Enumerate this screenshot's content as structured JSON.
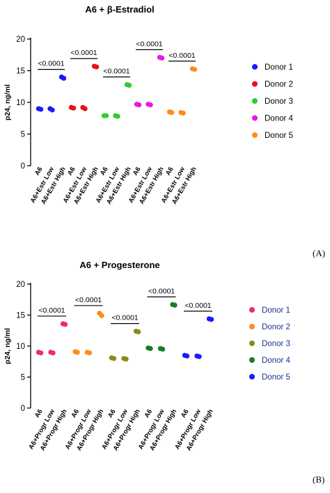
{
  "chart_data": [
    {
      "type": "scatter",
      "panel": "(A)",
      "title": "A6 + β-Estradiol",
      "ylabel": "p24, ng/ml",
      "ylim": [
        0,
        20
      ],
      "yticks": [
        0,
        5,
        10,
        15,
        20
      ],
      "categories": [
        "A6",
        "A6+Estr Low",
        "A6+Estr High"
      ],
      "legend_position": "right",
      "legend_text_color": "#000000",
      "series": [
        {
          "name": "Donor 1",
          "color": "#1a1aff",
          "values": [
            [
              9.0,
              8.9
            ],
            [
              9.0,
              8.8
            ],
            [
              14.0,
              13.8
            ]
          ],
          "p_value": "<0.0001"
        },
        {
          "name": "Donor 2",
          "color": "#e8101a",
          "values": [
            [
              9.2,
              9.1
            ],
            [
              9.2,
              9.0
            ],
            [
              15.7,
              15.6
            ]
          ],
          "p_value": "<0.0001"
        },
        {
          "name": "Donor 3",
          "color": "#2ecc2e",
          "values": [
            [
              7.9,
              7.9
            ],
            [
              7.9,
              7.8
            ],
            [
              12.8,
              12.7
            ]
          ],
          "p_value": "<0.0001"
        },
        {
          "name": "Donor 4",
          "color": "#e619e6",
          "values": [
            [
              9.7,
              9.6
            ],
            [
              9.7,
              9.6
            ],
            [
              17.1,
              17.0
            ]
          ],
          "p_value": "<0.0001"
        },
        {
          "name": "Donor 5",
          "color": "#ff8c1a",
          "values": [
            [
              8.5,
              8.4
            ],
            [
              8.4,
              8.3
            ],
            [
              15.3,
              15.2
            ]
          ],
          "p_value": "<0.0001"
        }
      ]
    },
    {
      "type": "scatter",
      "panel": "(B)",
      "title": "A6 + Progesterone",
      "ylabel": "p24, ng/ml",
      "ylim": [
        0,
        20
      ],
      "yticks": [
        0,
        5,
        10,
        15,
        20
      ],
      "categories": [
        "A6",
        "A6+Progr Low",
        "A6+Progr High"
      ],
      "legend_position": "right",
      "legend_text_color": "#1f2f8f",
      "series": [
        {
          "name": "Donor 1",
          "color": "#ee2a7b",
          "values": [
            [
              9.0,
              8.9
            ],
            [
              9.0,
              8.9
            ],
            [
              13.6,
              13.5
            ]
          ],
          "p_value": "<0.0001"
        },
        {
          "name": "Donor 2",
          "color": "#ff8c1a",
          "values": [
            [
              9.1,
              9.0
            ],
            [
              9.0,
              8.9
            ],
            [
              15.3,
              14.9
            ]
          ],
          "p_value": "<0.0001"
        },
        {
          "name": "Donor 3",
          "color": "#8a8a18",
          "values": [
            [
              8.1,
              8.0
            ],
            [
              8.0,
              7.9
            ],
            [
              12.4,
              12.3
            ]
          ],
          "p_value": "<0.0001"
        },
        {
          "name": "Donor 4",
          "color": "#1e7a1e",
          "values": [
            [
              9.7,
              9.6
            ],
            [
              9.6,
              9.5
            ],
            [
              16.7,
              16.6
            ]
          ],
          "p_value": "<0.0001"
        },
        {
          "name": "Donor 5",
          "color": "#1a1aff",
          "values": [
            [
              8.5,
              8.4
            ],
            [
              8.4,
              8.3
            ],
            [
              14.4,
              14.3
            ]
          ],
          "p_value": "<0.0001"
        }
      ]
    }
  ]
}
